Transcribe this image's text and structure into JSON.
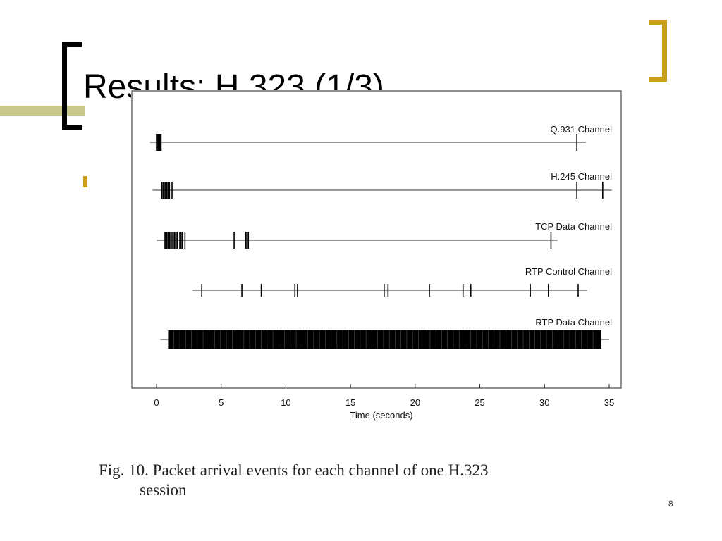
{
  "slide": {
    "title": "Results: H.323 (1/3)",
    "page_number": "8"
  },
  "caption": {
    "line1": "Fig. 10.   Packet arrival events for each channel of one H.323",
    "line2": "session"
  },
  "colors": {
    "accent_gold": "#c9a21a",
    "accent_olive": "#c8c88c",
    "ink": "#000000"
  },
  "chart_data": {
    "type": "scatter",
    "title": "",
    "xlabel": "Time (seconds)",
    "ylabel": "",
    "xlim": [
      -2,
      36
    ],
    "xticks": [
      0,
      5,
      10,
      15,
      20,
      25,
      30,
      35
    ],
    "grid": false,
    "series": [
      {
        "name": "Q.931 Channel",
        "line": [
          -0.5,
          33.2
        ],
        "events": [
          0.0,
          0.1,
          0.15,
          0.2,
          0.25,
          0.3,
          0.35,
          32.5
        ]
      },
      {
        "name": "H.245 Channel",
        "line": [
          -0.3,
          35.2
        ],
        "events": [
          0.4,
          0.5,
          0.6,
          0.7,
          0.8,
          0.9,
          1.0,
          1.2,
          32.5,
          34.5
        ]
      },
      {
        "name": "TCP Data Channel",
        "line": [
          0.0,
          31.0
        ],
        "events": [
          0.6,
          0.7,
          0.8,
          0.9,
          1.0,
          1.1,
          1.2,
          1.3,
          1.4,
          1.5,
          1.6,
          1.8,
          1.9,
          2.0,
          2.2,
          6.0,
          6.9,
          7.0,
          7.1,
          30.5
        ]
      },
      {
        "name": "RTP Control Channel",
        "line": [
          2.8,
          33.3
        ],
        "events": [
          3.5,
          6.6,
          8.1,
          10.7,
          10.9,
          17.6,
          17.9,
          21.1,
          23.7,
          24.3,
          28.9,
          30.3,
          32.6
        ]
      },
      {
        "name": "RTP Data Channel",
        "line": [
          0.3,
          35.0
        ],
        "range": [
          0.9,
          34.4
        ]
      }
    ]
  }
}
